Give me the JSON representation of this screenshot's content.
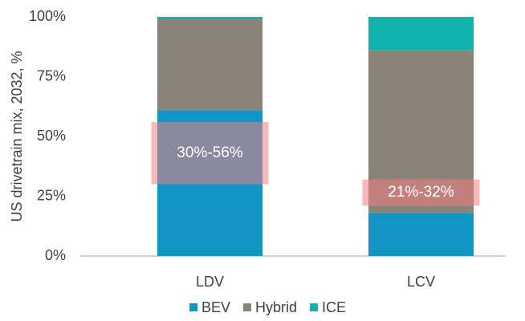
{
  "chart_data": {
    "type": "stacked_bar",
    "y_label": "US drivetrain mix, 2032, %",
    "categories": [
      "LDV",
      "LCV"
    ],
    "series": [
      {
        "name": "BEV",
        "color": "#1195c5",
        "values": [
          61,
          18
        ]
      },
      {
        "name": "Hybrid",
        "color": "#8a8378",
        "values": [
          38,
          68
        ]
      },
      {
        "name": "ICE",
        "color": "#13b3ad",
        "values": [
          1,
          14
        ]
      }
    ],
    "ylim": [
      0,
      100
    ],
    "yticks": [
      {
        "value": 0,
        "label": "0%"
      },
      {
        "value": 25,
        "label": "25%"
      },
      {
        "value": 50,
        "label": "50%"
      },
      {
        "value": 75,
        "label": "75%"
      },
      {
        "value": 100,
        "label": "100%"
      }
    ],
    "annotations": [
      {
        "text": "30%-56%",
        "category": 0,
        "range": [
          30,
          56
        ],
        "color": "#f08080"
      },
      {
        "text": "21%-32%",
        "category": 1,
        "range": [
          21,
          32
        ],
        "color": "#f08080"
      }
    ],
    "legend": "bottom"
  }
}
